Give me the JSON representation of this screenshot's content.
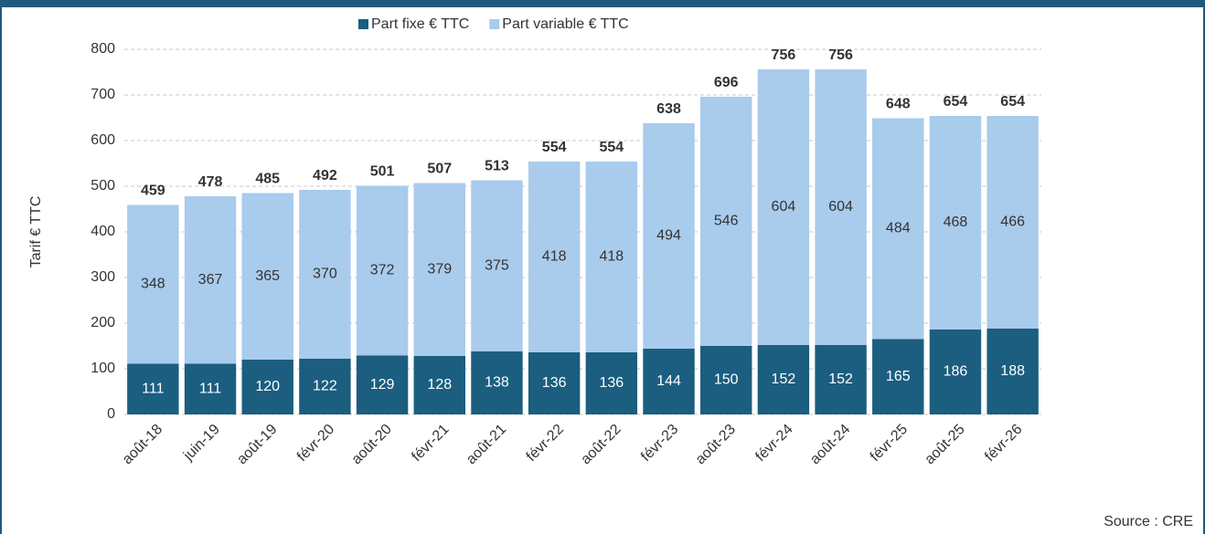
{
  "chart_data": {
    "type": "stacked_bar",
    "categories": [
      "août-18",
      "juin-19",
      "août-19",
      "févr-20",
      "août-20",
      "févr-21",
      "août-21",
      "févr-22",
      "août-22",
      "févr-23",
      "août-23",
      "févr-24",
      "août-24",
      "févr-25",
      "août-25",
      "févr-26"
    ],
    "series": [
      {
        "name": "Part fixe € TTC",
        "color": "#1b5e80",
        "values": [
          111,
          111,
          120,
          122,
          129,
          128,
          138,
          136,
          136,
          144,
          150,
          152,
          152,
          165,
          186,
          188
        ]
      },
      {
        "name": "Part variable € TTC",
        "color": "#a9cbec",
        "values": [
          348,
          367,
          365,
          370,
          372,
          379,
          375,
          418,
          418,
          494,
          546,
          604,
          604,
          484,
          468,
          466
        ]
      }
    ],
    "totals": [
      459,
      478,
      485,
      492,
      501,
      507,
      513,
      554,
      554,
      638,
      696,
      756,
      756,
      648,
      654,
      654
    ],
    "ylabel": "Tarif € TTC",
    "ylim": [
      0,
      800
    ],
    "yticks": [
      0,
      100,
      200,
      300,
      400,
      500,
      600,
      700,
      800
    ],
    "grid": true,
    "legend": "top",
    "source": "Source : CRE"
  }
}
